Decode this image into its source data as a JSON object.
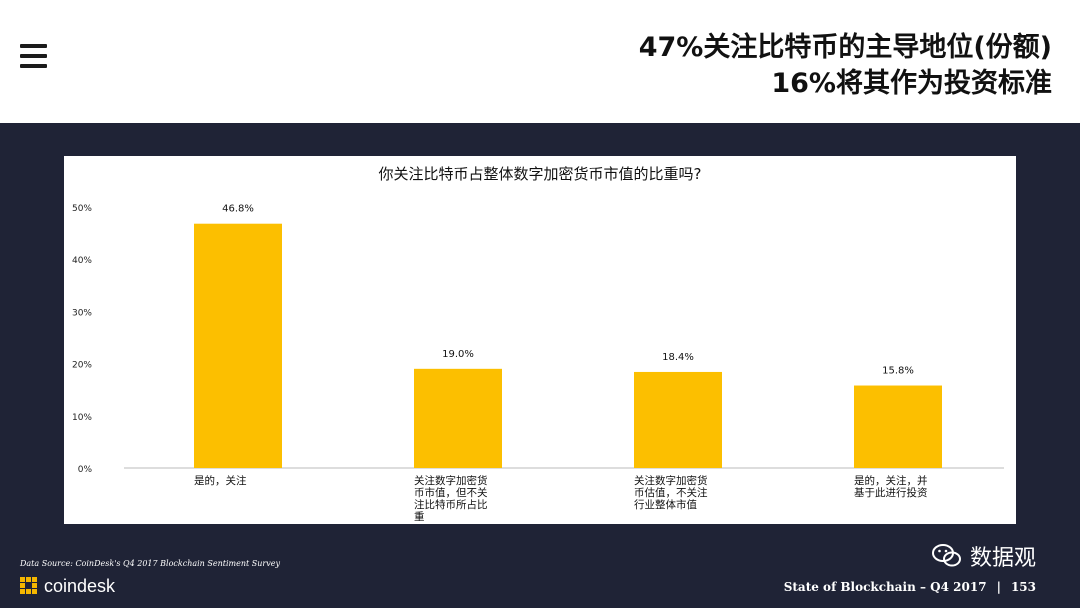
{
  "header": {
    "title_line1": "47%关注比特币的主导地位(份额)",
    "title_line2": "16%将其作为投资标准"
  },
  "chart_data": {
    "type": "bar",
    "title": "你关注比特币占整体数字加密货币市值的比重吗?",
    "categories": [
      [
        "是的，关注"
      ],
      [
        "关注数字加密货",
        "币市值，但不关",
        "注比特币所占比",
        "重"
      ],
      [
        "关注数字加密货",
        "币估值，不关注",
        "行业整体市值"
      ],
      [
        "是的，关注，并",
        "基于此进行投资"
      ]
    ],
    "values": [
      46.8,
      19.0,
      18.4,
      15.8
    ],
    "value_labels": [
      "46.8%",
      "19.0%",
      "18.4%",
      "15.8%"
    ],
    "ylim": [
      0,
      50
    ],
    "yticks": [
      "0%",
      "10%",
      "20%",
      "30%",
      "40%",
      "50%"
    ],
    "bar_color": "#fcbf00",
    "grid": false
  },
  "footer": {
    "source": "Data Source: CoinDesk's Q4 2017 Blockchain Sentiment Survey",
    "brand": "coindesk",
    "report": "State of Blockchain – Q4 2017",
    "separator": "|",
    "page": "153",
    "wechat_name": "数据观"
  },
  "colors": {
    "background_dark": "#1f2336",
    "accent": "#f5b700"
  }
}
